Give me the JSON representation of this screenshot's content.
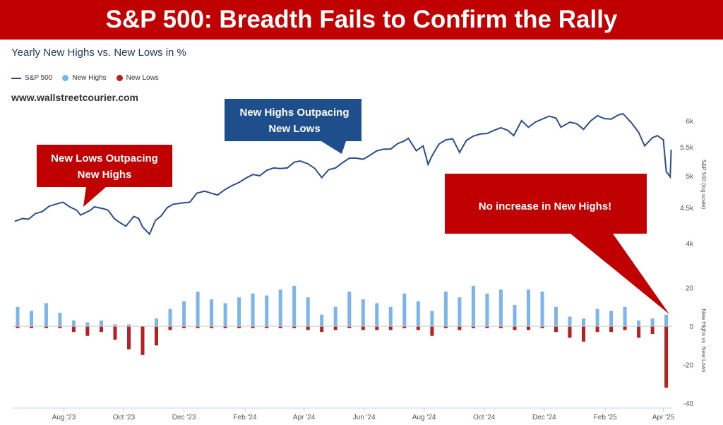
{
  "banner": {
    "title": "S&P 500: Breadth Fails to Confirm the Rally",
    "bg": "#c00000"
  },
  "subtitle": "Yearly New Highs vs. New Lows in %",
  "legend": [
    {
      "label": "S&P 500",
      "color": "#2c4e8a",
      "kind": "line"
    },
    {
      "label": "New Highs",
      "color": "#7cb5ec",
      "kind": "dot"
    },
    {
      "label": "New Lows",
      "color": "#b22222",
      "kind": "dot"
    }
  ],
  "website": "www.wallstreetcourier.com",
  "callouts": {
    "lows": {
      "line1": "New Lows Outpacing",
      "line2": "New Highs",
      "color": "#c00000"
    },
    "highs": {
      "line1": "New Highs Outpacing",
      "line2": "New Lows",
      "color": "#1f4e8c"
    },
    "no_increase": {
      "line1": "No increase in New Highs!",
      "color": "#c00000"
    }
  },
  "chart_data": [
    {
      "type": "line",
      "series": [
        {
          "name": "S&P 500",
          "color": "#2c4e8a",
          "points": [
            [
              "2023-06-12",
              4300
            ],
            [
              "2023-06-20",
              4340
            ],
            [
              "2023-06-26",
              4330
            ],
            [
              "2023-07-03",
              4410
            ],
            [
              "2023-07-10",
              4440
            ],
            [
              "2023-07-17",
              4520
            ],
            [
              "2023-07-26",
              4560
            ],
            [
              "2023-07-31",
              4580
            ],
            [
              "2023-08-07",
              4510
            ],
            [
              "2023-08-14",
              4460
            ],
            [
              "2023-08-18",
              4390
            ],
            [
              "2023-08-28",
              4460
            ],
            [
              "2023-09-01",
              4510
            ],
            [
              "2023-09-11",
              4480
            ],
            [
              "2023-09-15",
              4460
            ],
            [
              "2023-09-21",
              4340
            ],
            [
              "2023-09-27",
              4280
            ],
            [
              "2023-10-03",
              4230
            ],
            [
              "2023-10-11",
              4370
            ],
            [
              "2023-10-16",
              4340
            ],
            [
              "2023-10-20",
              4220
            ],
            [
              "2023-10-27",
              4120
            ],
            [
              "2023-11-02",
              4310
            ],
            [
              "2023-11-08",
              4380
            ],
            [
              "2023-11-14",
              4500
            ],
            [
              "2023-11-20",
              4550
            ],
            [
              "2023-11-30",
              4570
            ],
            [
              "2023-12-07",
              4580
            ],
            [
              "2023-12-14",
              4720
            ],
            [
              "2023-12-22",
              4750
            ],
            [
              "2024-01-04",
              4690
            ],
            [
              "2024-01-12",
              4780
            ],
            [
              "2024-01-19",
              4840
            ],
            [
              "2024-01-26",
              4890
            ],
            [
              "2024-02-02",
              4960
            ],
            [
              "2024-02-09",
              5020
            ],
            [
              "2024-02-16",
              5000
            ],
            [
              "2024-02-23",
              5090
            ],
            [
              "2024-03-01",
              5130
            ],
            [
              "2024-03-08",
              5120
            ],
            [
              "2024-03-15",
              5130
            ],
            [
              "2024-03-22",
              5230
            ],
            [
              "2024-03-28",
              5250
            ],
            [
              "2024-04-05",
              5200
            ],
            [
              "2024-04-12",
              5120
            ],
            [
              "2024-04-19",
              4970
            ],
            [
              "2024-04-26",
              5100
            ],
            [
              "2024-05-03",
              5130
            ],
            [
              "2024-05-10",
              5220
            ],
            [
              "2024-05-17",
              5300
            ],
            [
              "2024-05-24",
              5300
            ],
            [
              "2024-05-31",
              5280
            ],
            [
              "2024-06-07",
              5350
            ],
            [
              "2024-06-14",
              5430
            ],
            [
              "2024-06-21",
              5460
            ],
            [
              "2024-06-28",
              5460
            ],
            [
              "2024-07-05",
              5560
            ],
            [
              "2024-07-12",
              5610
            ],
            [
              "2024-07-16",
              5660
            ],
            [
              "2024-07-24",
              5430
            ],
            [
              "2024-07-31",
              5520
            ],
            [
              "2024-08-05",
              5190
            ],
            [
              "2024-08-09",
              5340
            ],
            [
              "2024-08-16",
              5550
            ],
            [
              "2024-08-23",
              5630
            ],
            [
              "2024-08-30",
              5650
            ],
            [
              "2024-09-06",
              5400
            ],
            [
              "2024-09-13",
              5620
            ],
            [
              "2024-09-20",
              5700
            ],
            [
              "2024-09-27",
              5740
            ],
            [
              "2024-10-04",
              5750
            ],
            [
              "2024-10-11",
              5810
            ],
            [
              "2024-10-18",
              5860
            ],
            [
              "2024-10-25",
              5810
            ],
            [
              "2024-10-31",
              5710
            ],
            [
              "2024-11-08",
              6000
            ],
            [
              "2024-11-15",
              5870
            ],
            [
              "2024-11-22",
              5970
            ],
            [
              "2024-11-29",
              6030
            ],
            [
              "2024-12-06",
              6090
            ],
            [
              "2024-12-13",
              6050
            ],
            [
              "2024-12-18",
              5870
            ],
            [
              "2024-12-27",
              5970
            ],
            [
              "2025-01-03",
              5940
            ],
            [
              "2025-01-10",
              5830
            ],
            [
              "2025-01-17",
              5990
            ],
            [
              "2025-01-24",
              6100
            ],
            [
              "2025-01-31",
              6040
            ],
            [
              "2025-02-07",
              6030
            ],
            [
              "2025-02-14",
              6110
            ],
            [
              "2025-02-19",
              6140
            ],
            [
              "2025-02-28",
              5950
            ],
            [
              "2025-03-07",
              5770
            ],
            [
              "2025-03-13",
              5520
            ],
            [
              "2025-03-21",
              5670
            ],
            [
              "2025-03-26",
              5710
            ],
            [
              "2025-04-01",
              5630
            ],
            [
              "2025-04-04",
              5070
            ],
            [
              "2025-04-08",
              4980
            ],
            [
              "2025-04-09",
              5450
            ]
          ]
        }
      ],
      "y_axis": {
        "label": "S&P 500 (log scale)",
        "scale": "log",
        "ticks": [
          "4k",
          "4.5k",
          "5k",
          "5.5k",
          "6k"
        ],
        "tick_values": [
          4000,
          4500,
          5000,
          5500,
          6000
        ],
        "range": [
          3750,
          6300
        ]
      }
    },
    {
      "type": "bar",
      "series": [
        {
          "name": "New Highs",
          "color": "#7cb5ec",
          "points": [
            [
              "2023-06-15",
              10
            ],
            [
              "2023-06-29",
              8
            ],
            [
              "2023-07-14",
              12
            ],
            [
              "2023-07-28",
              7
            ],
            [
              "2023-08-11",
              3
            ],
            [
              "2023-08-25",
              2
            ],
            [
              "2023-09-08",
              3
            ],
            [
              "2023-09-22",
              1
            ],
            [
              "2023-10-06",
              1
            ],
            [
              "2023-10-20",
              0
            ],
            [
              "2023-11-03",
              4
            ],
            [
              "2023-11-17",
              9
            ],
            [
              "2023-12-01",
              13
            ],
            [
              "2023-12-15",
              18
            ],
            [
              "2023-12-29",
              14
            ],
            [
              "2024-01-12",
              12
            ],
            [
              "2024-01-26",
              15
            ],
            [
              "2024-02-09",
              17
            ],
            [
              "2024-02-23",
              16
            ],
            [
              "2024-03-08",
              19
            ],
            [
              "2024-03-22",
              21
            ],
            [
              "2024-04-05",
              15
            ],
            [
              "2024-04-19",
              6
            ],
            [
              "2024-05-03",
              10
            ],
            [
              "2024-05-17",
              18
            ],
            [
              "2024-05-31",
              14
            ],
            [
              "2024-06-14",
              12
            ],
            [
              "2024-06-28",
              10
            ],
            [
              "2024-07-12",
              17
            ],
            [
              "2024-07-26",
              13
            ],
            [
              "2024-08-09",
              8
            ],
            [
              "2024-08-23",
              18
            ],
            [
              "2024-09-06",
              15
            ],
            [
              "2024-09-20",
              21
            ],
            [
              "2024-10-04",
              17
            ],
            [
              "2024-10-18",
              19
            ],
            [
              "2024-11-01",
              11
            ],
            [
              "2024-11-15",
              19
            ],
            [
              "2024-11-29",
              18
            ],
            [
              "2024-12-13",
              10
            ],
            [
              "2024-12-27",
              5
            ],
            [
              "2025-01-10",
              4
            ],
            [
              "2025-01-24",
              9
            ],
            [
              "2025-02-07",
              8
            ],
            [
              "2025-02-21",
              10
            ],
            [
              "2025-03-07",
              3
            ],
            [
              "2025-03-21",
              4
            ],
            [
              "2025-04-04",
              6
            ]
          ]
        },
        {
          "name": "New Lows",
          "color": "#b22222",
          "points": [
            [
              "2023-06-15",
              -1
            ],
            [
              "2023-06-29",
              -1
            ],
            [
              "2023-07-14",
              -1
            ],
            [
              "2023-07-28",
              -1
            ],
            [
              "2023-08-11",
              -3
            ],
            [
              "2023-08-25",
              -5
            ],
            [
              "2023-09-08",
              -3
            ],
            [
              "2023-09-22",
              -7
            ],
            [
              "2023-10-06",
              -12
            ],
            [
              "2023-10-20",
              -15
            ],
            [
              "2023-11-03",
              -10
            ],
            [
              "2023-11-17",
              -2
            ],
            [
              "2023-12-01",
              -1
            ],
            [
              "2023-12-15",
              -1
            ],
            [
              "2023-12-29",
              -1
            ],
            [
              "2024-01-12",
              -1
            ],
            [
              "2024-01-26",
              -1
            ],
            [
              "2024-02-09",
              -1
            ],
            [
              "2024-02-23",
              -1
            ],
            [
              "2024-03-08",
              -1
            ],
            [
              "2024-03-22",
              -1
            ],
            [
              "2024-04-05",
              -2
            ],
            [
              "2024-04-19",
              -3
            ],
            [
              "2024-05-03",
              -2
            ],
            [
              "2024-05-17",
              -1
            ],
            [
              "2024-05-31",
              -2
            ],
            [
              "2024-06-14",
              -2
            ],
            [
              "2024-06-28",
              -2
            ],
            [
              "2024-07-12",
              -1
            ],
            [
              "2024-07-26",
              -2
            ],
            [
              "2024-08-09",
              -5
            ],
            [
              "2024-08-23",
              -1
            ],
            [
              "2024-09-06",
              -2
            ],
            [
              "2024-09-20",
              -1
            ],
            [
              "2024-10-04",
              -1
            ],
            [
              "2024-10-18",
              -1
            ],
            [
              "2024-11-01",
              -2
            ],
            [
              "2024-11-15",
              -2
            ],
            [
              "2024-11-29",
              -1
            ],
            [
              "2024-12-13",
              -3
            ],
            [
              "2024-12-27",
              -6
            ],
            [
              "2025-01-10",
              -8
            ],
            [
              "2025-01-24",
              -3
            ],
            [
              "2025-02-07",
              -3
            ],
            [
              "2025-02-21",
              -2
            ],
            [
              "2025-03-07",
              -6
            ],
            [
              "2025-03-21",
              -4
            ],
            [
              "2025-04-04",
              -32
            ]
          ]
        }
      ],
      "y_axis": {
        "label": "New Highs vs. New Lows",
        "ticks": [
          "20",
          "0",
          "-20",
          "-40"
        ],
        "tick_values": [
          20,
          0,
          -20,
          -40
        ],
        "range": [
          -40,
          25
        ]
      }
    }
  ],
  "x_axis": {
    "ticks": [
      "Aug '23",
      "Oct '23",
      "Dec '23",
      "Feb '24",
      "Apr '24",
      "Jun '24",
      "Aug '24",
      "Oct '24",
      "Dec '24",
      "Feb '25",
      "Apr '25"
    ],
    "tick_dates": [
      "2023-08-01",
      "2023-10-01",
      "2023-12-01",
      "2024-02-01",
      "2024-04-01",
      "2024-06-01",
      "2024-08-01",
      "2024-10-01",
      "2024-12-01",
      "2025-02-01",
      "2025-04-01"
    ],
    "range": [
      "2023-06-10",
      "2025-04-10"
    ]
  }
}
